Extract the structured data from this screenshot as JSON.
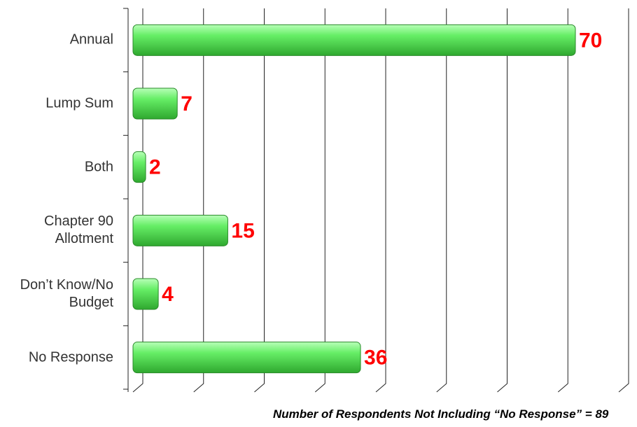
{
  "chart_data": {
    "type": "bar",
    "orientation": "horizontal",
    "categories": [
      "Annual",
      "Lump Sum",
      "Both",
      "Chapter 90 Allotment",
      "Don’t Know/No Budget",
      "No Response"
    ],
    "values": [
      70,
      7,
      2,
      15,
      4,
      36
    ],
    "color": "#66ee66",
    "label_color": "#ff0000",
    "xlim": [
      0,
      80
    ],
    "xticks": [
      0,
      10,
      20,
      30,
      40,
      50,
      60,
      70,
      80
    ],
    "grid": true,
    "footnote": "Number of Respondents Not Including “No Response” = 89"
  }
}
